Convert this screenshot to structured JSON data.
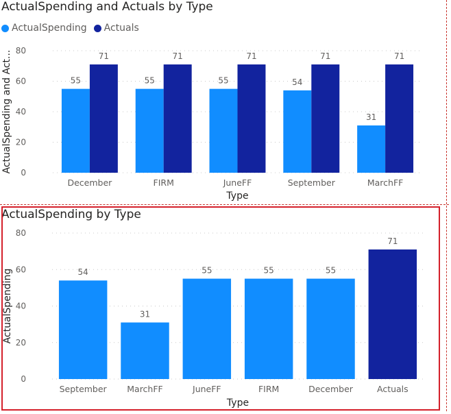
{
  "colors": {
    "actual_spending": "#118dff",
    "actuals": "#12239e",
    "selection": "#d41f2a"
  },
  "visual1": {
    "title": "ActualSpending and Actuals by Type",
    "legend": [
      {
        "label": "ActualSpending",
        "color": "#118dff"
      },
      {
        "label": "Actuals",
        "color": "#12239e"
      }
    ]
  },
  "visual2": {
    "title": "ActualSpending by Type"
  },
  "chart_data": [
    {
      "type": "bar",
      "title": "ActualSpending and Actuals by Type",
      "xlabel": "Type",
      "ylabel": "ActualSpending and Act...",
      "categories": [
        "December",
        "FIRM",
        "JuneFF",
        "September",
        "MarchFF"
      ],
      "series": [
        {
          "name": "ActualSpending",
          "values": [
            55,
            55,
            55,
            54,
            31
          ],
          "color": "#118dff"
        },
        {
          "name": "Actuals",
          "values": [
            71,
            71,
            71,
            71,
            71
          ],
          "color": "#12239e"
        }
      ],
      "ylim": [
        0,
        80
      ],
      "yticks": [
        0,
        20,
        40,
        60,
        80
      ],
      "grid": true,
      "legend_position": "top-left"
    },
    {
      "type": "bar",
      "title": "ActualSpending by Type",
      "xlabel": "Type",
      "ylabel": "ActualSpending",
      "categories": [
        "September",
        "MarchFF",
        "JuneFF",
        "FIRM",
        "December",
        "Actuals"
      ],
      "values": [
        54,
        31,
        55,
        55,
        55,
        71
      ],
      "bar_colors": [
        "#118dff",
        "#118dff",
        "#118dff",
        "#118dff",
        "#118dff",
        "#12239e"
      ],
      "ylim": [
        0,
        80
      ],
      "yticks": [
        0,
        20,
        40,
        60,
        80
      ],
      "grid": true
    }
  ]
}
